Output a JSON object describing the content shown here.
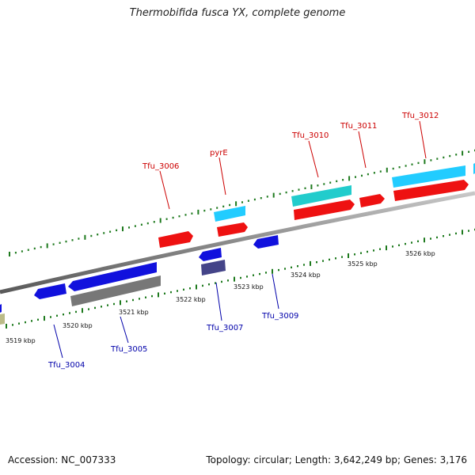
{
  "title": "Thermobifida fusca YX, complete genome",
  "accession_text": "Accession: NC_007333",
  "summary_text": "Topology: circular; Length: 3,642,249 bp; Genes: 3,176",
  "colors": {
    "backbone": "#808080",
    "tick": "#1e7a1e",
    "forward_label": "#cc0000",
    "reverse_label": "#0000aa",
    "cds_red": "#ee1111",
    "cds_lightblue": "#22ccff",
    "cds_cyan": "#22cccc",
    "cds_blue": "#1111dd",
    "cds_gray": "#777777",
    "cds_navy": "#444488",
    "cds_khaki": "#bbbb88"
  },
  "kbp_scale": {
    "labels": [
      "3519 kbp",
      "3520 kbp",
      "3521 kbp",
      "3522 kbp",
      "3523 kbp",
      "3524 kbp",
      "3525 kbp",
      "3526 kbp"
    ]
  },
  "genes_forward": [
    {
      "name": "Tfu_3006",
      "color": "cds_red"
    },
    {
      "name": "pyrE",
      "color": "cds_lightblue"
    },
    {
      "name": "Tfu_3010",
      "color": "cds_cyan"
    },
    {
      "name": "Tfu_3011",
      "color": "cds_red"
    },
    {
      "name": "Tfu_3012",
      "color": "cds_lightblue"
    }
  ],
  "genes_reverse": [
    {
      "name": "Tfu_3004",
      "color": "cds_blue"
    },
    {
      "name": "Tfu_3005",
      "color": "cds_blue"
    },
    {
      "name": "Tfu_3007",
      "color": "cds_blue"
    },
    {
      "name": "Tfu_3009",
      "color": "cds_blue"
    }
  ]
}
